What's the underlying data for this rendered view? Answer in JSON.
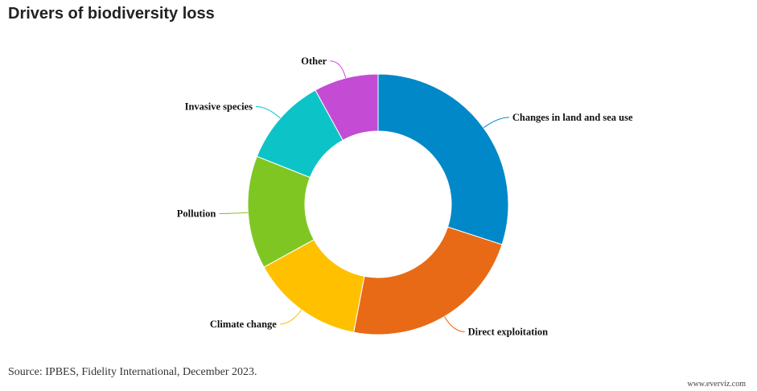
{
  "chart_data": {
    "type": "pie",
    "title": "Drivers of biodiversity loss",
    "categories": [
      "Changes in land and sea use",
      "Direct exploitation",
      "Climate change",
      "Pollution",
      "Invasive species",
      "Other"
    ],
    "values": [
      30,
      23,
      14,
      14,
      11,
      8
    ],
    "colors": [
      "#0088c8",
      "#e86a17",
      "#ffc000",
      "#80c623",
      "#0cc4c8",
      "#c44bd4"
    ],
    "legend": "none",
    "donut": true
  },
  "footer": {
    "source": "Source: IPBES, Fidelity International, December 2023.",
    "credit": "www.everviz.com"
  }
}
